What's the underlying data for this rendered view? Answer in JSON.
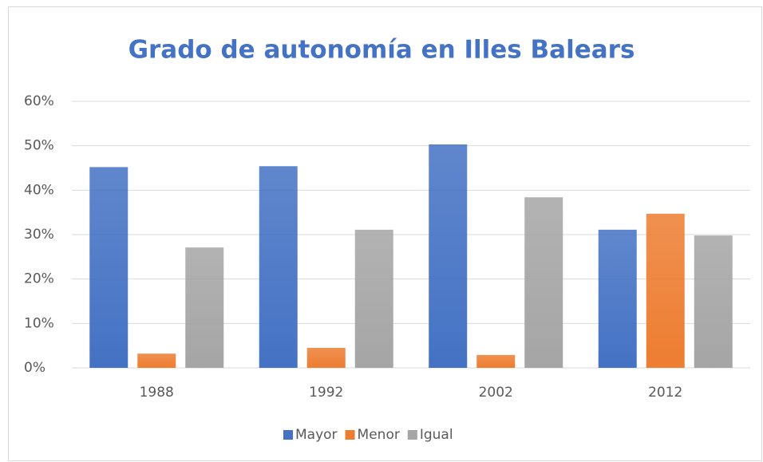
{
  "chart_data": {
    "type": "bar",
    "title": "Grado de autonomía en Illes Balears",
    "categories": [
      "1988",
      "1992",
      "2002",
      "2012"
    ],
    "series": [
      {
        "name": "Mayor",
        "color": "#4472c4",
        "values": [
          45.2,
          45.4,
          50.3,
          31.1
        ]
      },
      {
        "name": "Menor",
        "color": "#ed7d31",
        "values": [
          3.2,
          4.5,
          2.9,
          34.7
        ]
      },
      {
        "name": "Igual",
        "color": "#a5a5a5",
        "values": [
          27.1,
          31.1,
          38.4,
          29.8
        ]
      }
    ],
    "ylim": [
      0,
      60
    ],
    "yticks": [
      {
        "value": 0,
        "label": "0%"
      },
      {
        "value": 10,
        "label": "10%"
      },
      {
        "value": 20,
        "label": "20%"
      },
      {
        "value": 30,
        "label": "30%"
      },
      {
        "value": 40,
        "label": "40%"
      },
      {
        "value": 50,
        "label": "50%"
      },
      {
        "value": 60,
        "label": "60%"
      }
    ],
    "grid": true,
    "legend": "bottom"
  }
}
